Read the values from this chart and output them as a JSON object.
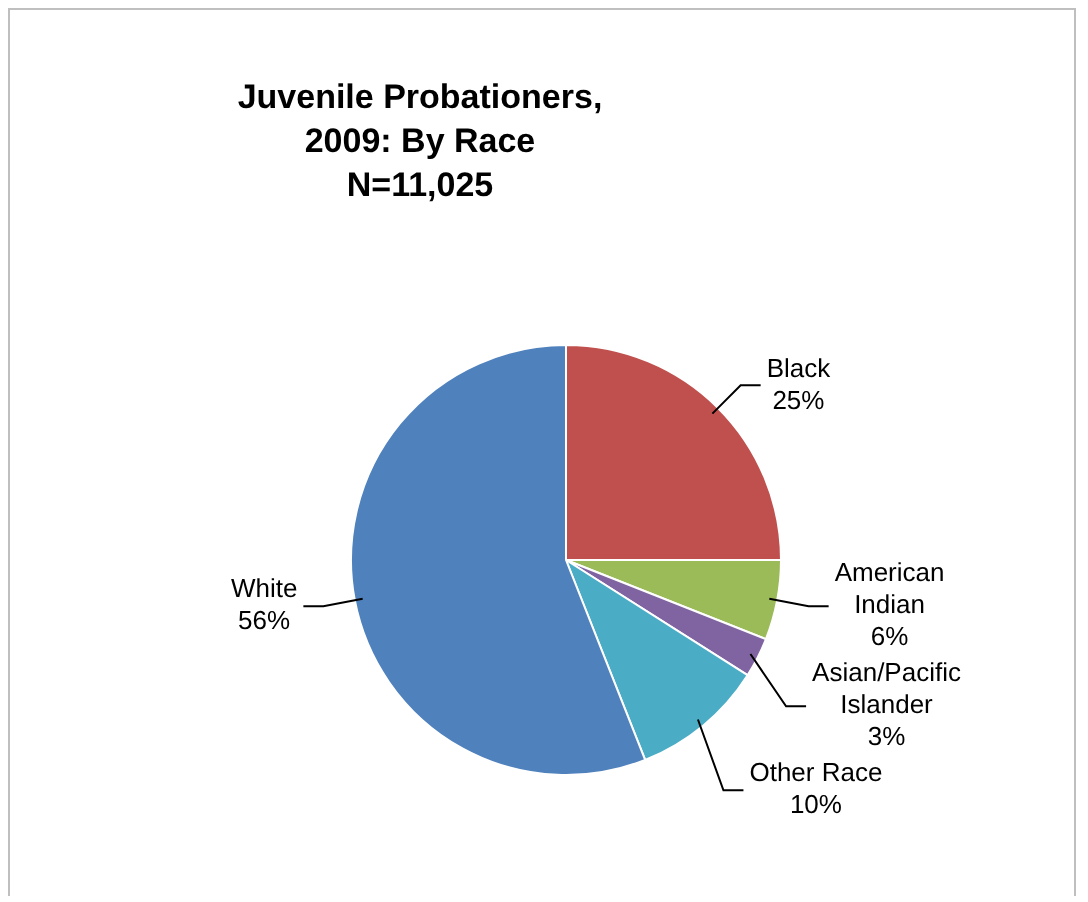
{
  "chart_data": {
    "type": "pie",
    "title": "Juvenile Probationers, 2009: By Race",
    "subtitle": "N=11,025",
    "categories": [
      "Black",
      "American Indian",
      "Asian/Pacific Islander",
      "Other Race",
      "White"
    ],
    "values": [
      25,
      6,
      3,
      10,
      56
    ],
    "colors": [
      "#c0504d",
      "#9bbb59",
      "#8064a2",
      "#4bacc6",
      "#4f81bd"
    ],
    "value_labels": [
      "25%",
      "6%",
      "3%",
      "10%",
      "56%"
    ],
    "legend": false
  }
}
